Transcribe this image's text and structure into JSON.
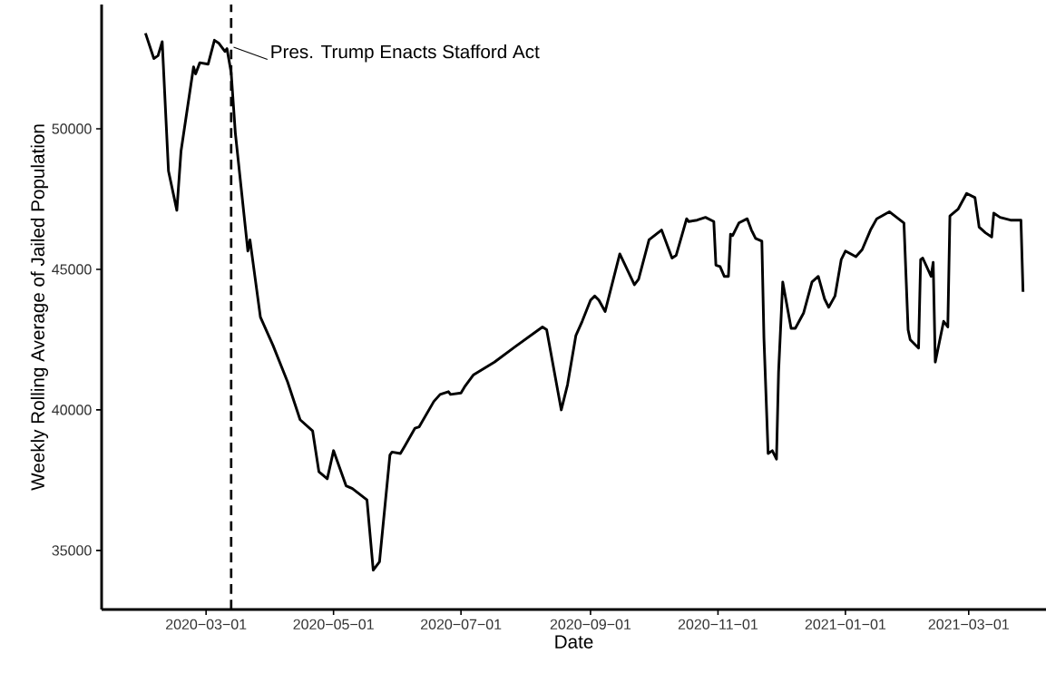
{
  "chart_data": {
    "type": "line",
    "xlabel": "Date",
    "ylabel": "Weekly Rolling Average of Jailed Population",
    "x": [
      "2020-02-01",
      "2020-02-05",
      "2020-02-07",
      "2020-02-09",
      "2020-02-12",
      "2020-02-16",
      "2020-02-18",
      "2020-02-24",
      "2020-02-25",
      "2020-02-27",
      "2020-03-02",
      "2020-03-05",
      "2020-03-07",
      "2020-03-10",
      "2020-03-11",
      "2020-03-13",
      "2020-03-15",
      "2020-03-21",
      "2020-03-22",
      "2020-03-27",
      "2020-04-02",
      "2020-04-09",
      "2020-04-15",
      "2020-04-21",
      "2020-04-24",
      "2020-04-28",
      "2020-05-01",
      "2020-05-07",
      "2020-05-10",
      "2020-05-17",
      "2020-05-20",
      "2020-05-23",
      "2020-05-28",
      "2020-05-29",
      "2020-06-02",
      "2020-06-04",
      "2020-06-09",
      "2020-06-11",
      "2020-06-18",
      "2020-06-21",
      "2020-06-25",
      "2020-06-26",
      "2020-07-01",
      "2020-07-03",
      "2020-07-07",
      "2020-07-17",
      "2020-07-27",
      "2020-08-09",
      "2020-08-11",
      "2020-08-18",
      "2020-08-21",
      "2020-08-25",
      "2020-08-28",
      "2020-09-01",
      "2020-09-03",
      "2020-09-05",
      "2020-09-08",
      "2020-09-15",
      "2020-09-22",
      "2020-09-24",
      "2020-09-29",
      "2020-10-05",
      "2020-10-10",
      "2020-10-12",
      "2020-10-17",
      "2020-10-18",
      "2020-10-22",
      "2020-10-26",
      "2020-10-30",
      "2020-10-31",
      "2020-11-02",
      "2020-11-04",
      "2020-11-06",
      "2020-11-07",
      "2020-11-08",
      "2020-11-11",
      "2020-11-15",
      "2020-11-17",
      "2020-11-19",
      "2020-11-22",
      "2020-11-23",
      "2020-11-25",
      "2020-11-27",
      "2020-11-29",
      "2020-11-30",
      "2020-12-02",
      "2020-12-06",
      "2020-12-08",
      "2020-12-12",
      "2020-12-16",
      "2020-12-19",
      "2020-12-22",
      "2020-12-24",
      "2020-12-27",
      "2020-12-30",
      "2021-01-01",
      "2021-01-06",
      "2021-01-09",
      "2021-01-13",
      "2021-01-16",
      "2021-01-22",
      "2021-01-29",
      "2021-01-31",
      "2021-02-01",
      "2021-02-05",
      "2021-02-06",
      "2021-02-07",
      "2021-02-11",
      "2021-02-12",
      "2021-02-13",
      "2021-02-17",
      "2021-02-19",
      "2021-02-20",
      "2021-02-24",
      "2021-02-28",
      "2021-03-04",
      "2021-03-06",
      "2021-03-09",
      "2021-03-12",
      "2021-03-13",
      "2021-03-16",
      "2021-03-21",
      "2021-03-26",
      "2021-03-27"
    ],
    "series": [
      {
        "color": "#000000",
        "values": [
          53400,
          52500,
          52600,
          53100,
          48500,
          47100,
          49200,
          52200,
          51950,
          52350,
          52300,
          53150,
          53050,
          52750,
          52850,
          52000,
          49850,
          45650,
          46050,
          43300,
          42300,
          41000,
          39650,
          39250,
          37800,
          37550,
          38550,
          37300,
          37200,
          36800,
          34300,
          34600,
          38400,
          38500,
          38450,
          38700,
          39350,
          39400,
          40300,
          40550,
          40650,
          40550,
          40600,
          40850,
          41250,
          41700,
          42250,
          42950,
          42850,
          40000,
          40900,
          42650,
          43150,
          43900,
          44050,
          43900,
          43500,
          45550,
          44450,
          44650,
          46050,
          46400,
          45400,
          45500,
          46800,
          46700,
          46750,
          46850,
          46700,
          45150,
          45100,
          44750,
          44750,
          46250,
          46200,
          46650,
          46800,
          46400,
          46100,
          46000,
          42550,
          38450,
          38550,
          38250,
          41350,
          44550,
          42900,
          42900,
          43450,
          44550,
          44750,
          43950,
          43650,
          44050,
          45350,
          45650,
          45450,
          45700,
          46400,
          46800,
          47050,
          46650,
          42850,
          42500,
          42200,
          45350,
          45400,
          44750,
          45250,
          41700,
          43150,
          42950,
          46900,
          47150,
          47700,
          47550,
          46500,
          46300,
          46150,
          47000,
          46850,
          46750,
          46750,
          44200
        ]
      }
    ],
    "xlim": [
      "2020-01-11",
      "2021-04-07"
    ],
    "ylim": [
      32900,
      54420
    ],
    "xticks": [
      {
        "value": "2020-03-01",
        "label": "2020−03−01"
      },
      {
        "value": "2020-05-01",
        "label": "2020−05−01"
      },
      {
        "value": "2020-07-01",
        "label": "2020−07−01"
      },
      {
        "value": "2020-09-01",
        "label": "2020−09−01"
      },
      {
        "value": "2020-11-01",
        "label": "2020−11−01"
      },
      {
        "value": "2021-01-01",
        "label": "2021−01−01"
      },
      {
        "value": "2021-03-01",
        "label": "2021−03−01"
      }
    ],
    "yticks": [
      35000,
      40000,
      45000,
      50000
    ],
    "ref_lines": [
      {
        "axis": "x",
        "value": "2020-03-13",
        "line_style": "dashed",
        "color": "#000000"
      }
    ],
    "annotations": [
      {
        "text": "Pres. Trump Enacts Stafford Act",
        "x": "2020-03-13",
        "y": 52900
      }
    ]
  }
}
